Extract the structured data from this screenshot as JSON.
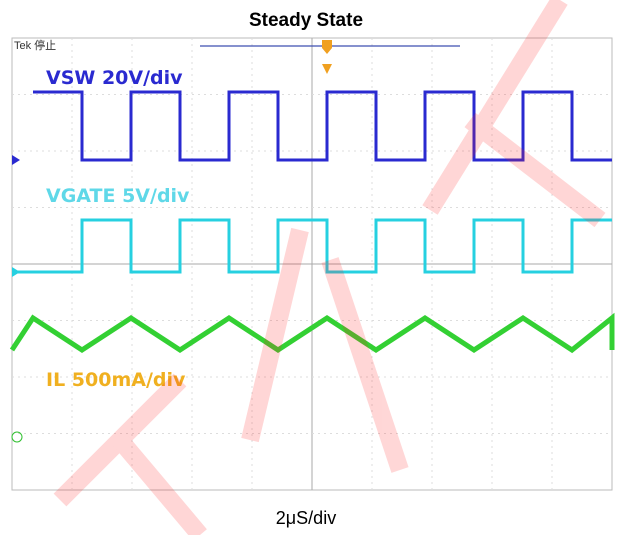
{
  "header": {
    "title": "Steady State"
  },
  "scope": {
    "status": "Tek 停止",
    "channels": [
      {
        "label": "VSW 20V/div"
      },
      {
        "label": "VGATE 5V/div"
      },
      {
        "label": "IL 500mA/div"
      }
    ],
    "timebase": "2μS/div"
  }
}
